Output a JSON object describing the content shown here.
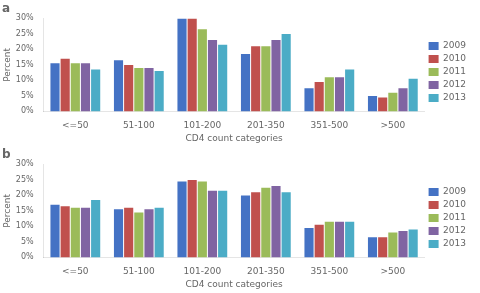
{
  "chart_data": [
    {
      "type": "bar",
      "title": "a",
      "categories": [
        "<=50",
        "51-100",
        "101-200",
        "201-350",
        "351-500",
        ">500"
      ],
      "series": [
        {
          "name": "2009",
          "color": "#4472C4",
          "values": [
            15.5,
            16.5,
            30.0,
            18.5,
            7.5,
            5.0
          ]
        },
        {
          "name": "2010",
          "color": "#C0504D",
          "values": [
            17.0,
            15.0,
            30.0,
            21.0,
            9.5,
            4.5
          ]
        },
        {
          "name": "2011",
          "color": "#9BBB59",
          "values": [
            15.5,
            14.0,
            26.5,
            21.0,
            11.0,
            6.0
          ]
        },
        {
          "name": "2012",
          "color": "#8064A2",
          "values": [
            15.5,
            14.0,
            23.0,
            23.0,
            11.0,
            7.5
          ]
        },
        {
          "name": "2013",
          "color": "#4BACC6",
          "values": [
            13.5,
            13.0,
            21.5,
            25.0,
            13.5,
            10.5
          ]
        }
      ],
      "x_label": "CD4 count categories",
      "y_label": "Percent",
      "ylim": [
        0,
        30
      ],
      "yticks": [
        {
          "value": 0,
          "label": "0%"
        },
        {
          "value": 5,
          "label": "5%"
        },
        {
          "value": 10,
          "label": "10%"
        },
        {
          "value": 15,
          "label": "15%"
        },
        {
          "value": 20,
          "label": "20%"
        },
        {
          "value": 25,
          "label": "25%"
        },
        {
          "value": 30,
          "label": "30%"
        }
      ],
      "grid": false,
      "legend": "right"
    },
    {
      "type": "bar",
      "title": "b",
      "categories": [
        "<=50",
        "51-100",
        "101-200",
        "201-350",
        "351-500",
        ">500"
      ],
      "series": [
        {
          "name": "2009",
          "color": "#4472C4",
          "values": [
            17.0,
            15.5,
            24.5,
            20.0,
            9.5,
            6.5
          ]
        },
        {
          "name": "2010",
          "color": "#C0504D",
          "values": [
            16.5,
            16.0,
            25.0,
            21.0,
            10.5,
            6.5
          ]
        },
        {
          "name": "2011",
          "color": "#9BBB59",
          "values": [
            16.0,
            14.5,
            24.5,
            22.5,
            11.5,
            8.0
          ]
        },
        {
          "name": "2012",
          "color": "#8064A2",
          "values": [
            16.0,
            15.5,
            21.5,
            23.0,
            11.5,
            8.5
          ]
        },
        {
          "name": "2013",
          "color": "#4BACC6",
          "values": [
            18.5,
            16.0,
            21.5,
            21.0,
            11.5,
            9.0
          ]
        }
      ],
      "x_label": "CD4 count categories",
      "y_label": "Percent",
      "ylim": [
        0,
        30
      ],
      "yticks": [
        {
          "value": 0,
          "label": "0%"
        },
        {
          "value": 5,
          "label": "5%"
        },
        {
          "value": 10,
          "label": "10%"
        },
        {
          "value": 15,
          "label": "15%"
        },
        {
          "value": 20,
          "label": "20%"
        },
        {
          "value": 25,
          "label": "25%"
        },
        {
          "value": 30,
          "label": "30%"
        }
      ],
      "grid": false,
      "legend": "right"
    }
  ]
}
